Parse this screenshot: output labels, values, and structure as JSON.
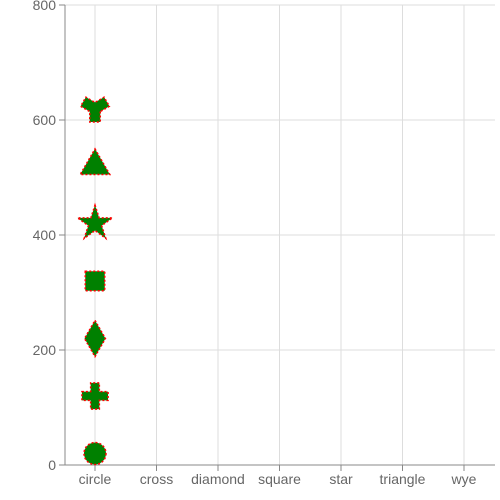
{
  "chart_data": {
    "type": "scatter",
    "title": "",
    "xlabel": "",
    "ylabel": "",
    "categories": [
      "circle",
      "cross",
      "diamond",
      "square",
      "star",
      "triangle",
      "wye"
    ],
    "ylim": [
      0,
      800
    ],
    "y_ticks": [
      0,
      200,
      400,
      600,
      800
    ],
    "y_tick_labels": [
      "0",
      "200",
      "400",
      "600",
      "800"
    ],
    "grid": true,
    "points": [
      {
        "x": "circle",
        "y": 20,
        "symbol": "circle"
      },
      {
        "x": "circle",
        "y": 120,
        "symbol": "cross"
      },
      {
        "x": "circle",
        "y": 220,
        "symbol": "diamond"
      },
      {
        "x": "circle",
        "y": 320,
        "symbol": "square"
      },
      {
        "x": "circle",
        "y": 420,
        "symbol": "star"
      },
      {
        "x": "circle",
        "y": 520,
        "symbol": "triangle"
      },
      {
        "x": "circle",
        "y": 620,
        "symbol": "wye"
      }
    ],
    "colors": {
      "fill": "#008000",
      "stroke": "#ff0000",
      "grid": "#dddddd",
      "axis": "#888888",
      "text": "#666666"
    }
  }
}
